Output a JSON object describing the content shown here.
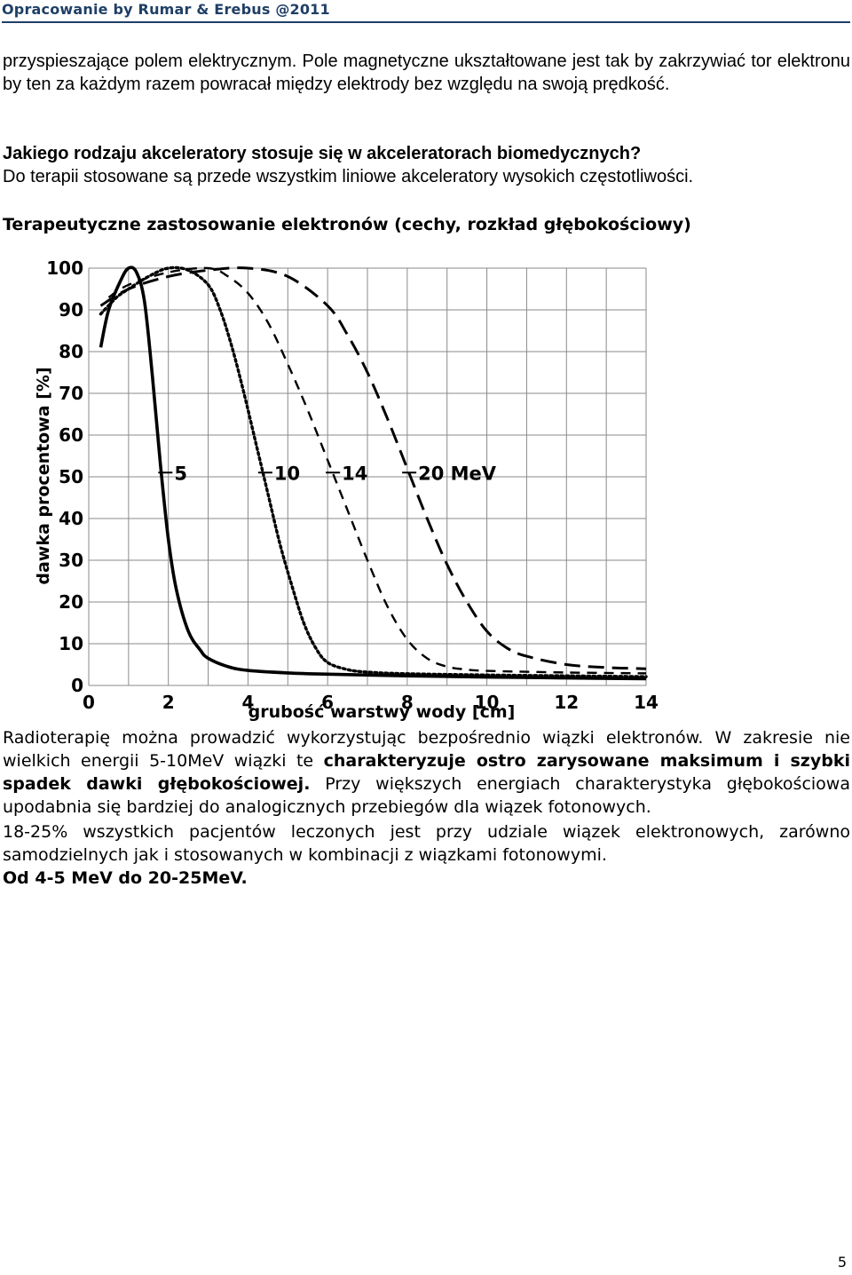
{
  "header": {
    "title": "Opracowanie by Rumar & Erebus @2011"
  },
  "paragraphs": {
    "intro": "przyspieszające polem elektrycznym. Pole magnetyczne ukształtowane jest tak by zakrzywiać tor elektronu by ten za każdym razem powracał między elektrody bez względu na swoją prędkość.",
    "question": "Jakiego rodzaju akceleratory stosuje się w akceleratorach biomedycznych?",
    "answer": "Do terapii stosowane są przede wszystkim liniowe akceleratory wysokich częstotliwości.",
    "section_title": "Terapeutyczne zastosowanie elektronów (cechy, rozkład głębokościowy)",
    "body1_a": "Radioterapię można prowadzić wykorzystując bezpośrednio wiązki elektronów. W zakresie nie wielkich energii 5-10MeV wiązki te ",
    "body1_bold": "charakteryzuje ostro zarysowane maksimum i szybki spadek dawki głębokościowej.",
    "body1_b": " Przy większych energiach charakterystyka głębokościowa upodabnia się bardziej do analogicznych przebiegów dla wiązek fotonowych.",
    "body2": "18-25% wszystkich pacjentów leczonych jest przy udziale wiązek elektronowych, zarówno samodzielnych jak i stosowanych w kombinacji z wiązkami fotonowymi.",
    "body3": "Od 4-5 MeV do 20-25MeV."
  },
  "chart_data": {
    "type": "line",
    "xlabel": "grubość warstwy wody [cm]",
    "ylabel": "dawka procentowa [%]",
    "xlim": [
      0,
      14
    ],
    "ylim": [
      0,
      100
    ],
    "x_ticks": [
      "0",
      "2",
      "4",
      "6",
      "8",
      "10",
      "12",
      "14"
    ],
    "y_ticks": [
      "0",
      "10",
      "20",
      "30",
      "40",
      "50",
      "60",
      "70",
      "80",
      "90",
      "100"
    ],
    "grid": true,
    "series": [
      {
        "name": "5",
        "style": "solid",
        "x": [
          0.3,
          0.5,
          0.8,
          1.0,
          1.2,
          1.4,
          1.6,
          1.8,
          2.0,
          2.2,
          2.5,
          2.8,
          3.0,
          3.5,
          4.0,
          5.0,
          6.0,
          8.0,
          10.0,
          12.0,
          14.0
        ],
        "y": [
          81,
          90,
          97,
          100,
          99,
          92,
          74,
          53,
          35,
          23,
          13,
          8.5,
          6.5,
          4.5,
          3.6,
          3.0,
          2.7,
          2.3,
          2.0,
          1.8,
          1.6
        ]
      },
      {
        "name": "10",
        "style": "dotted",
        "x": [
          0.3,
          0.7,
          1.0,
          1.5,
          2.0,
          2.5,
          3.0,
          3.3,
          3.6,
          3.9,
          4.2,
          4.5,
          4.8,
          5.1,
          5.4,
          5.7,
          6.0,
          6.5,
          7.0,
          8.0,
          10.0,
          12.0,
          14.0
        ],
        "y": [
          89,
          93,
          95,
          98,
          100,
          99.5,
          96,
          90,
          81,
          70,
          58,
          46,
          34,
          24,
          15,
          9,
          5.5,
          3.8,
          3.2,
          2.8,
          2.5,
          2.3,
          2.1
        ]
      },
      {
        "name": "14",
        "style": "dashed",
        "x": [
          0.5,
          1.0,
          2.0,
          3.0,
          3.5,
          4.0,
          4.5,
          5.0,
          5.5,
          6.0,
          6.5,
          7.0,
          7.5,
          8.0,
          8.5,
          9.0,
          9.5,
          10.0,
          12.0,
          14.0
        ],
        "y": [
          93,
          96,
          99,
          100,
          98,
          94,
          87,
          77,
          66,
          54,
          42,
          30,
          19,
          11,
          6.5,
          4.5,
          3.8,
          3.5,
          3.1,
          2.9
        ]
      },
      {
        "name": "20 MeV",
        "style": "long-dashed",
        "x": [
          0.3,
          1.0,
          2.0,
          3.0,
          4.0,
          5.0,
          6.0,
          6.5,
          7.0,
          7.5,
          8.0,
          8.5,
          9.0,
          9.5,
          10.0,
          10.5,
          11.0,
          12.0,
          13.0,
          14.0
        ],
        "y": [
          91,
          95,
          98,
          99.5,
          100,
          98,
          91,
          84,
          75,
          64,
          52,
          40,
          29,
          20,
          13,
          9,
          7,
          5,
          4.3,
          4
        ]
      }
    ]
  },
  "page": {
    "number": "5"
  }
}
